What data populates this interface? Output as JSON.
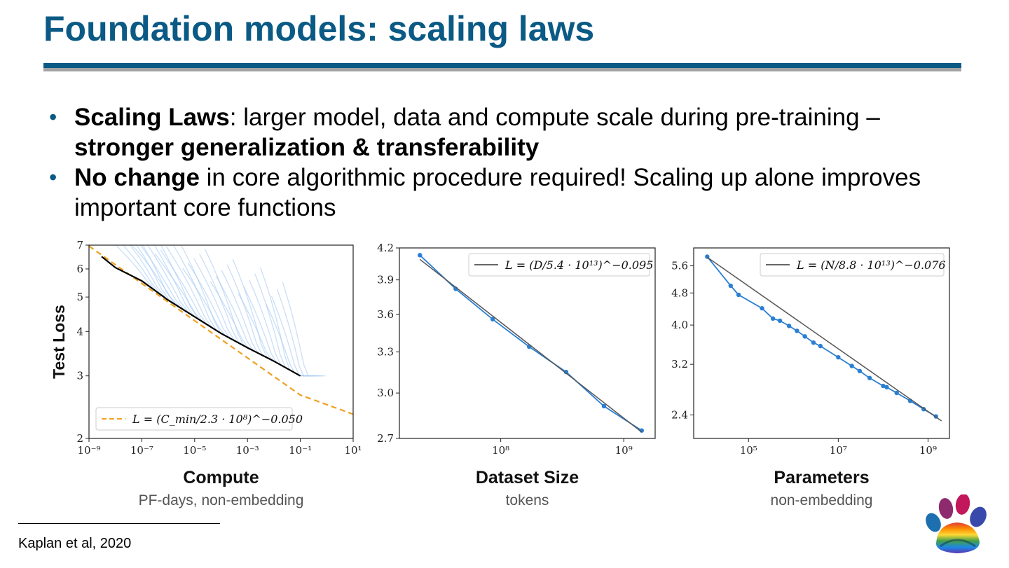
{
  "slide": {
    "title": "Foundation models: scaling laws",
    "bullets": [
      {
        "bold_lead": "Scaling Laws",
        "text": ": larger model, data and compute scale during pre-training – ",
        "bold_tail": "stronger generalization & transferability"
      },
      {
        "bold_lead": "No change",
        "text": " in core algorithmic procedure required! Scaling up alone improves important core functions",
        "bold_tail": ""
      }
    ],
    "footnote": "Kaplan et al, 2020",
    "colors": {
      "title": "#0b5a85",
      "rule_grey": "#a3a3a3",
      "fit_dashed": "#f0a020",
      "points": "#2a7fd4",
      "runs": "#9cc4f0"
    },
    "logo_icon": "paw-print-rainbow-icon"
  },
  "chart_data": [
    {
      "type": "line",
      "xlabel": "Compute",
      "xsublabel": "PF-days, non-embedding",
      "ylabel": "Test Loss",
      "xscale": "log",
      "yscale": "log",
      "xlim": [
        1e-09,
        10
      ],
      "ylim": [
        2,
        7
      ],
      "xticks": [
        "10⁻⁹",
        "10⁻⁷",
        "10⁻⁵",
        "10⁻³",
        "10⁻¹",
        "10¹"
      ],
      "xtick_values": [
        1e-09,
        1e-07,
        1e-05,
        0.001,
        0.1,
        10
      ],
      "yticks": [
        "7",
        "6",
        "5",
        "4",
        "3",
        "2"
      ],
      "ytick_values": [
        7,
        6,
        5,
        4,
        3,
        2
      ],
      "legend": "L = (C_min/2.3 · 10⁸)^−0.050",
      "legend_placement": "lower-left",
      "series": [
        {
          "name": "L = (C_min/2.3 · 10⁸)^−0.050",
          "style": "dashed",
          "x": [
            1e-09,
            1e-07,
            1e-05,
            0.001,
            0.1,
            10
          ],
          "y": [
            6.96,
            5.46,
            4.29,
            3.37,
            2.65,
            2.34
          ]
        },
        {
          "name": "",
          "style": "envelope",
          "x": [
            3e-09,
            1e-08,
            1e-07,
            1e-06,
            1e-05,
            0.0001,
            0.001,
            0.01,
            0.1
          ],
          "y": [
            6.5,
            6.05,
            5.55,
            4.9,
            4.4,
            3.95,
            3.6,
            3.3,
            3.0
          ]
        }
      ]
    },
    {
      "type": "line",
      "xlabel": "Dataset Size",
      "xsublabel": "tokens",
      "xscale": "log",
      "yscale": "log",
      "xlim": [
        15000000.0,
        1800000000.0
      ],
      "ylim": [
        2.7,
        4.2
      ],
      "xticks": [
        "10⁸",
        "10⁹"
      ],
      "xtick_values": [
        100000000.0,
        1000000000.0
      ],
      "yticks": [
        "4.2",
        "3.9",
        "3.6",
        "3.3",
        "3.0",
        "2.7"
      ],
      "ytick_values": [
        4.2,
        3.9,
        3.6,
        3.3,
        3.0,
        2.7
      ],
      "legend": "L = (D/5.4 · 10¹³)^−0.095",
      "legend_placement": "upper-right",
      "series": [
        {
          "name": "",
          "style": "points",
          "x": [
            22000000.0,
            43000000.0,
            86000000.0,
            170000000.0,
            340000000.0,
            690000000.0,
            1400000000.0
          ],
          "y": [
            4.13,
            3.82,
            3.56,
            3.34,
            3.15,
            2.91,
            2.75
          ]
        },
        {
          "name": "L = (D/5.4 · 10¹³)^−0.095",
          "style": "fit",
          "x": [
            22000000.0,
            1400000000.0
          ],
          "y": [
            4.09,
            2.74
          ]
        }
      ]
    },
    {
      "type": "line",
      "xlabel": "Parameters",
      "xsublabel": "non-embedding",
      "xscale": "log",
      "yscale": "log",
      "xlim": [
        6000,
        3000000000.0
      ],
      "ylim": [
        2.1,
        6.2
      ],
      "xticks": [
        "10⁵",
        "10⁷",
        "10⁹"
      ],
      "xtick_values": [
        100000.0,
        10000000.0,
        1000000000.0
      ],
      "yticks": [
        "5.6",
        "4.8",
        "4.0",
        "3.2",
        "2.4"
      ],
      "ytick_values": [
        5.6,
        4.8,
        4.0,
        3.2,
        2.4
      ],
      "legend": "L = (N/8.8 · 10¹³)^−0.076",
      "legend_placement": "upper-right",
      "series": [
        {
          "name": "",
          "style": "points",
          "x": [
            12000.0,
            40000.0,
            60000.0,
            200000.0,
            350000.0,
            500000.0,
            800000.0,
            1200000.0,
            1800000.0,
            2800000.0,
            4000000.0,
            10000000.0,
            20000000.0,
            30000000.0,
            50000000.0,
            100000000.0,
            120000000.0,
            200000000.0,
            400000000.0,
            800000000.0,
            1500000000.0
          ],
          "y": [
            5.9,
            5.0,
            4.75,
            4.4,
            4.15,
            4.1,
            3.98,
            3.87,
            3.75,
            3.62,
            3.55,
            3.33,
            3.17,
            3.08,
            2.96,
            2.83,
            2.81,
            2.72,
            2.6,
            2.48,
            2.38
          ]
        },
        {
          "name": "L = (N/8.8 · 10¹³)^−0.076",
          "style": "fit",
          "x": [
            12000.0,
            2000000000.0
          ],
          "y": [
            5.88,
            2.32
          ]
        }
      ]
    }
  ]
}
